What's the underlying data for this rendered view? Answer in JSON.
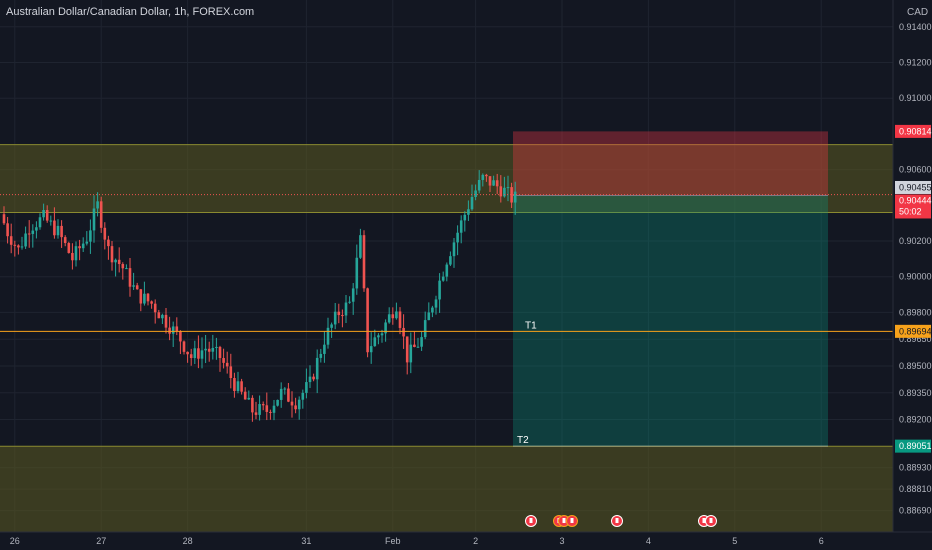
{
  "title": "Australian Dollar/Canadian Dollar, 1h, FOREX.com",
  "currency": "CAD",
  "colors": {
    "background": "#131722",
    "grid": "#1f2430",
    "up": "#26a69a",
    "down": "#ef5350",
    "zone": "#5b5a20",
    "target_line": "#f7a21b",
    "stop": "#f23645",
    "profit": "#089981"
  },
  "price_axis": {
    "min": 0.8857,
    "max": 0.9155,
    "ticks": [
      "0.91400",
      "0.91200",
      "0.91000",
      "0.90600",
      "0.90200",
      "0.90000",
      "0.89800",
      "0.89650",
      "0.89500",
      "0.89350",
      "0.89200",
      "0.88930",
      "0.88810",
      "0.88690"
    ],
    "tick_values": [
      0.914,
      0.912,
      0.91,
      0.906,
      0.902,
      0.9,
      0.898,
      0.8965,
      0.895,
      0.8935,
      0.892,
      0.8893,
      0.8881,
      0.8869
    ]
  },
  "time_axis": {
    "labels": [
      "26",
      "27",
      "28",
      "31",
      "Feb",
      "2",
      "3",
      "4",
      "5",
      "6"
    ],
    "label_index": [
      3,
      27,
      51,
      84,
      108,
      131,
      155,
      179,
      203,
      227
    ]
  },
  "price_labels": {
    "stop": "0.90814",
    "bid": "0.90455",
    "last": "0.90444",
    "countdown": "50:02",
    "target1": "0.89694",
    "target2": "0.89051"
  },
  "annotations": {
    "t1": "T1",
    "t2": "T2"
  },
  "levels": {
    "zone_upper": [
      0.9036,
      0.9074
    ],
    "zone_lower": [
      0.8857,
      0.8905
    ],
    "stop": 0.90814,
    "entry": 0.90455,
    "target1": 0.89694,
    "target2": 0.89051
  },
  "event_icons": [
    "flag-icon",
    "flag-icon",
    "flag-icon",
    "flag-icon",
    "flag-icon",
    "flag-icon"
  ],
  "chart_data": {
    "type": "candlestick",
    "x_step_hours": 1,
    "anchors": [
      [
        0,
        0.9035
      ],
      [
        2,
        0.9025
      ],
      [
        5,
        0.9015
      ],
      [
        8,
        0.9028
      ],
      [
        12,
        0.9033
      ],
      [
        16,
        0.9025
      ],
      [
        20,
        0.901
      ],
      [
        24,
        0.9022
      ],
      [
        27,
        0.904
      ],
      [
        30,
        0.9015
      ],
      [
        34,
        0.9005
      ],
      [
        38,
        0.899
      ],
      [
        42,
        0.8985
      ],
      [
        46,
        0.8975
      ],
      [
        50,
        0.8965
      ],
      [
        53,
        0.8955
      ],
      [
        57,
        0.896
      ],
      [
        61,
        0.8955
      ],
      [
        65,
        0.894
      ],
      [
        70,
        0.8925
      ],
      [
        74,
        0.8925
      ],
      [
        78,
        0.8935
      ],
      [
        82,
        0.893
      ],
      [
        86,
        0.894
      ],
      [
        90,
        0.8965
      ],
      [
        94,
        0.898
      ],
      [
        97,
        0.8985
      ],
      [
        100,
        0.902
      ],
      [
        102,
        0.896
      ],
      [
        106,
        0.897
      ],
      [
        110,
        0.8985
      ],
      [
        113,
        0.8955
      ],
      [
        117,
        0.8965
      ],
      [
        120,
        0.8985
      ],
      [
        124,
        0.901
      ],
      [
        128,
        0.903
      ],
      [
        131,
        0.9045
      ],
      [
        134,
        0.9055
      ],
      [
        137,
        0.9052
      ],
      [
        140,
        0.9048
      ],
      [
        142,
        0.9044
      ]
    ]
  }
}
